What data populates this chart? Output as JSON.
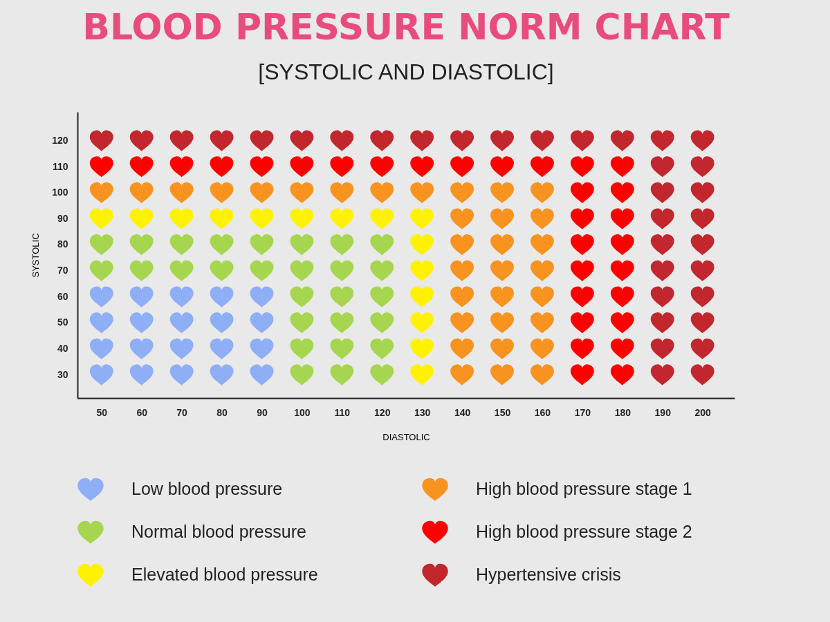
{
  "chart_data": {
    "type": "scatter",
    "title": "BLOOD PRESSURE NORM CHART",
    "subtitle": "[SYSTOLIC AND DIASTOLIC]",
    "xlabel": "DIASTOLIC",
    "ylabel": "SYSTOLIC",
    "xlim": [
      44,
      208
    ],
    "ylim": [
      21,
      131
    ],
    "xticks": [
      50,
      60,
      70,
      80,
      90,
      100,
      110,
      120,
      130,
      140,
      150,
      160,
      170,
      180,
      190,
      200
    ],
    "yticks": [
      30,
      40,
      50,
      60,
      70,
      80,
      90,
      100,
      110,
      120
    ],
    "grid": false,
    "legend": "bottom",
    "series": [
      {
        "name": "Low blood pressure",
        "color": "#8eaef5",
        "x": [
          50,
          50,
          50,
          50,
          60,
          60,
          60,
          60,
          70,
          70,
          70,
          70,
          80,
          80,
          80,
          80,
          90,
          90,
          90,
          90
        ],
        "values": [
          30,
          40,
          50,
          60,
          30,
          40,
          50,
          60,
          30,
          40,
          50,
          60,
          30,
          40,
          50,
          60,
          30,
          40,
          50,
          60
        ]
      },
      {
        "name": "Normal blood pressure",
        "color": "#a6d64f",
        "x": [
          50,
          50,
          60,
          60,
          70,
          70,
          80,
          80,
          90,
          90,
          100,
          100,
          100,
          100,
          100,
          100,
          110,
          110,
          110,
          110,
          110,
          110,
          120,
          120,
          120,
          120,
          120,
          120
        ],
        "values": [
          70,
          80,
          70,
          80,
          70,
          80,
          70,
          80,
          70,
          80,
          30,
          40,
          50,
          60,
          70,
          80,
          30,
          40,
          50,
          60,
          70,
          80,
          30,
          40,
          50,
          60,
          70,
          80
        ]
      },
      {
        "name": "Elevated blood pressure",
        "color": "#fff200",
        "x": [
          50,
          60,
          70,
          80,
          90,
          100,
          110,
          120,
          130,
          130,
          130,
          130,
          130,
          130,
          130
        ],
        "values": [
          90,
          90,
          90,
          90,
          90,
          90,
          90,
          90,
          30,
          40,
          50,
          60,
          70,
          80,
          90
        ]
      },
      {
        "name": "High blood pressure stage 1",
        "color": "#f7931e",
        "x": [
          50,
          60,
          70,
          80,
          90,
          100,
          110,
          120,
          130,
          140,
          150,
          160,
          140,
          140,
          140,
          140,
          140,
          140,
          140,
          150,
          150,
          150,
          150,
          150,
          150,
          150,
          160,
          160,
          160,
          160,
          160,
          160,
          160
        ],
        "values": [
          100,
          100,
          100,
          100,
          100,
          100,
          100,
          100,
          100,
          100,
          100,
          100,
          30,
          40,
          50,
          60,
          70,
          80,
          90,
          30,
          40,
          50,
          60,
          70,
          80,
          90,
          30,
          40,
          50,
          60,
          70,
          80,
          90
        ]
      },
      {
        "name": "High blood pressure stage 2",
        "color": "#ff0000",
        "x": [
          50,
          60,
          70,
          80,
          90,
          100,
          110,
          120,
          130,
          140,
          150,
          160,
          170,
          180,
          170,
          170,
          170,
          170,
          170,
          170,
          170,
          170,
          180,
          180,
          180,
          180,
          180,
          180,
          180,
          180
        ],
        "values": [
          110,
          110,
          110,
          110,
          110,
          110,
          110,
          110,
          110,
          110,
          110,
          110,
          110,
          110,
          30,
          40,
          50,
          60,
          70,
          80,
          90,
          100,
          30,
          40,
          50,
          60,
          70,
          80,
          90,
          100
        ]
      },
      {
        "name": "Hypertensive crisis",
        "color": "#c1272d",
        "x": [
          50,
          60,
          70,
          80,
          90,
          100,
          110,
          120,
          130,
          140,
          150,
          160,
          170,
          180,
          190,
          200,
          190,
          190,
          190,
          190,
          190,
          190,
          190,
          190,
          190,
          200,
          200,
          200,
          200,
          200,
          200,
          200,
          200,
          200
        ],
        "values": [
          120,
          120,
          120,
          120,
          120,
          120,
          120,
          120,
          120,
          120,
          120,
          120,
          120,
          120,
          120,
          120,
          30,
          40,
          50,
          60,
          70,
          80,
          90,
          100,
          110,
          30,
          40,
          50,
          60,
          70,
          80,
          90,
          100,
          110
        ]
      }
    ]
  }
}
